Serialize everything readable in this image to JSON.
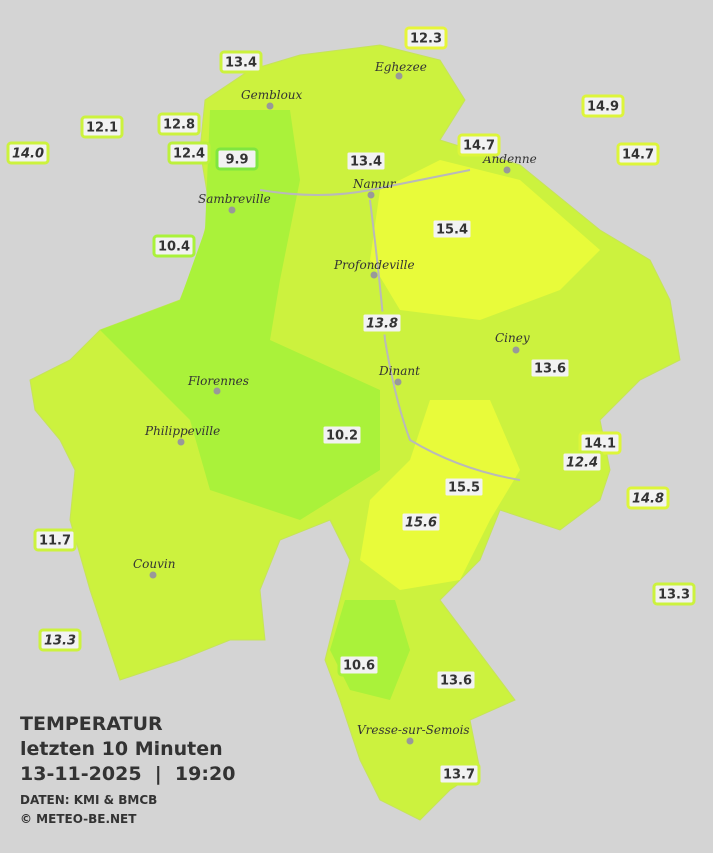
{
  "legend": {
    "title": "TEMPERATUR",
    "subtitle": "letzten 10 Minuten",
    "datetime": "13-11-2025  |  19:20",
    "source": "DATEN: KMI & BMCB",
    "copyright": "© METEO-BE.NET"
  },
  "cities": [
    "Eghezee",
    "Gembloux",
    "Andenne",
    "Namur",
    "Sambreville",
    "Profondeville",
    "Ciney",
    "Dinant",
    "Florennes",
    "Philippeville",
    "Couvin",
    "Vresse-sur-Semois"
  ],
  "stations": [
    "12.3",
    "13.4",
    "12.1",
    "12.8",
    "12.4",
    "9.9",
    "14.9",
    "14.0",
    "14.7",
    "13.4",
    "14.7",
    "15.4",
    "10.4",
    "13.8",
    "13.6",
    "10.2",
    "14.1",
    "12.4",
    "14.8",
    "15.5",
    "15.6",
    "11.7",
    "13.3",
    "13.3",
    "10.6",
    "13.6",
    "13.7"
  ]
}
